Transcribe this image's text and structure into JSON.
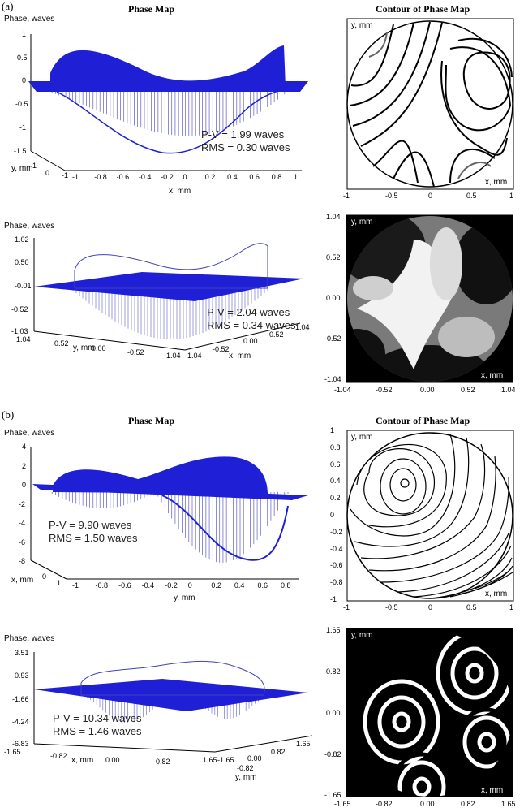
{
  "parts": [
    "(a)",
    "(b)"
  ],
  "titles": {
    "phase_map": "Phase Map",
    "contour": "Contour of Phase Map"
  },
  "axis_text": {
    "phase_waves": "Phase, waves",
    "x_mm": "x, mm",
    "y_mm": "y, mm"
  },
  "panels": {
    "a1": {
      "pv": "P-V = 1.99 waves",
      "rms": "RMS = 0.30 waves",
      "z_ticks": [
        "1",
        "0.5",
        "0",
        "-0.5",
        "-1",
        "-1.5"
      ],
      "x_ticks": [
        "-1",
        "-0.8",
        "-0.6",
        "-0.4",
        "-0.2",
        "0",
        "0.2",
        "0.4",
        "0.6",
        "0.8",
        "1"
      ],
      "y_ticks": [
        "1",
        "0",
        "-1"
      ]
    },
    "a2": {
      "pv": "P-V = 2.04 waves",
      "rms": "RMS = 0.34 waves",
      "z_ticks": [
        "1.02",
        "0.50",
        "-0.01",
        "-0.52",
        "-1.03"
      ],
      "y_ticks": [
        "1.04",
        "0.52",
        "0.00",
        "-0.52",
        "-1.04"
      ],
      "x_ticks": [
        "-1.04",
        "-0.52",
        "0.00",
        "0.52",
        "1.04"
      ]
    },
    "a_contour": {
      "x_ticks": [
        "-1",
        "-0.5",
        "0",
        "0.5",
        "1"
      ]
    },
    "a_fringe": {
      "y_ticks": [
        "1.04",
        "0.52",
        "0.00",
        "-0.52",
        "-1.04"
      ],
      "x_ticks": [
        "-1.04",
        "-0.52",
        "0.00",
        "0.52",
        "1.04"
      ]
    },
    "b1": {
      "pv": "P-V = 9.90 waves",
      "rms": "RMS = 1.50 waves",
      "z_ticks": [
        "4",
        "2",
        "0",
        "-2",
        "-4",
        "-6",
        "-8"
      ],
      "x_ticks": [
        "1",
        "0"
      ],
      "y_ticks": [
        "-1",
        "-0.8",
        "-0.6",
        "-0.4",
        "-0.2",
        "0",
        "0.2",
        "0.4",
        "0.6",
        "0.8"
      ]
    },
    "b_contour": {
      "y_ticks": [
        "1",
        "0.8",
        "0.6",
        "0.4",
        "0.2",
        "0",
        "-0.2",
        "-0.4",
        "-0.6",
        "-0.8",
        "-1"
      ],
      "x_ticks": [
        "-1",
        "-0.5",
        "0",
        "0.5",
        "1"
      ]
    },
    "b2": {
      "pv": "P-V = 10.34 waves",
      "rms": "RMS = 1.46 waves",
      "z_ticks": [
        "3.51",
        "0.93",
        "-1.66",
        "-4.24",
        "-6.83"
      ],
      "x_ticks": [
        "-1.65",
        "-0.82",
        "0.00",
        "0.82",
        "1.65"
      ],
      "y_ticks": [
        "-1.65",
        "-0.82",
        "0.00",
        "0.82",
        "1.65"
      ]
    },
    "b_fringe": {
      "y_ticks": [
        "1.65",
        "0.82",
        "0.00",
        "-0.82",
        "-1.65"
      ],
      "x_ticks": [
        "-1.65",
        "-0.82",
        "0.00",
        "0.82",
        "1.65"
      ]
    }
  },
  "colors": {
    "surface": "#1f1fd6",
    "mesh": "#6b6bb0"
  }
}
